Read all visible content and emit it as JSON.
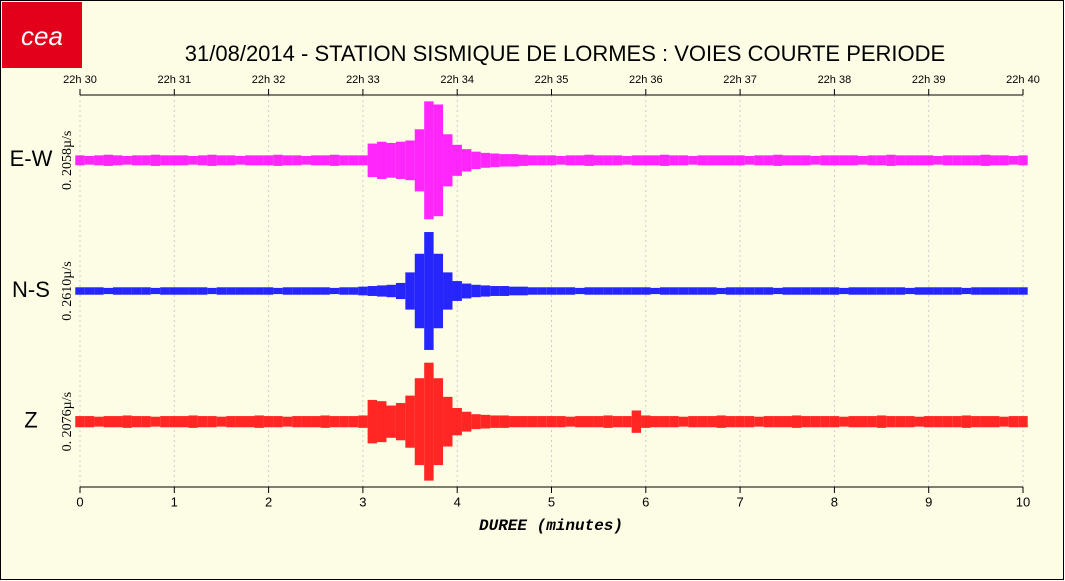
{
  "chart_data": {
    "type": "seismogram",
    "logo": "cea",
    "title": "31/08/2014  -  STATION SISMIQUE DE LORMES : VOIES COURTE PERIODE",
    "xlabel": "DUREE (minutes)",
    "xlim": [
      0,
      10
    ],
    "xticks": [
      0,
      1,
      2,
      3,
      4,
      5,
      6,
      7,
      8,
      9,
      10
    ],
    "top_xticks": [
      {
        "value": 0,
        "label": "22h 30"
      },
      {
        "value": 1,
        "label": "22h 31"
      },
      {
        "value": 2,
        "label": "22h 32"
      },
      {
        "value": 3,
        "label": "22h 33"
      },
      {
        "value": 4,
        "label": "22h 34"
      },
      {
        "value": 5,
        "label": "22h 35"
      },
      {
        "value": 6,
        "label": "22h 36"
      },
      {
        "value": 7,
        "label": "22h 37"
      },
      {
        "value": 8,
        "label": "22h 38"
      },
      {
        "value": 9,
        "label": "22h 39"
      },
      {
        "value": 10,
        "label": "22h 40"
      }
    ],
    "ylim": [
      -1,
      1
    ],
    "grid": true,
    "x": [
      0,
      0.1,
      0.2,
      0.3,
      0.4,
      0.5,
      0.6,
      0.7,
      0.8,
      0.9,
      1,
      1.1,
      1.2,
      1.3,
      1.4,
      1.5,
      1.6,
      1.7,
      1.8,
      1.9,
      2,
      2.1,
      2.2,
      2.3,
      2.4,
      2.5,
      2.6,
      2.7,
      2.8,
      2.9,
      3,
      3.1,
      3.2,
      3.3,
      3.4,
      3.5,
      3.6,
      3.7,
      3.8,
      3.9,
      4,
      4.1,
      4.2,
      4.3,
      4.4,
      4.5,
      4.6,
      4.7,
      4.8,
      4.9,
      5,
      5.1,
      5.2,
      5.3,
      5.4,
      5.5,
      5.6,
      5.7,
      5.8,
      5.9,
      6,
      6.1,
      6.2,
      6.3,
      6.4,
      6.5,
      6.6,
      6.7,
      6.8,
      6.9,
      7,
      7.1,
      7.2,
      7.3,
      7.4,
      7.5,
      7.6,
      7.7,
      7.8,
      7.9,
      8,
      8.1,
      8.2,
      8.3,
      8.4,
      8.5,
      8.6,
      8.7,
      8.8,
      8.9,
      9,
      9.1,
      9.2,
      9.3,
      9.4,
      9.5,
      9.6,
      9.7,
      9.8,
      9.9,
      10
    ],
    "series": [
      {
        "name": "E-W",
        "color": "#ff00ff",
        "scale_label": "0. 2058µ/s",
        "values": [
          0.08,
          0.07,
          0.08,
          0.09,
          0.08,
          0.07,
          0.08,
          0.08,
          0.09,
          0.08,
          0.08,
          0.08,
          0.07,
          0.08,
          0.09,
          0.08,
          0.08,
          0.07,
          0.08,
          0.08,
          0.08,
          0.09,
          0.08,
          0.08,
          0.07,
          0.08,
          0.08,
          0.09,
          0.08,
          0.08,
          0.08,
          0.27,
          0.3,
          0.28,
          0.3,
          0.32,
          0.5,
          0.95,
          0.9,
          0.42,
          0.25,
          0.18,
          0.14,
          0.12,
          0.11,
          0.1,
          0.1,
          0.09,
          0.08,
          0.08,
          0.08,
          0.07,
          0.08,
          0.08,
          0.09,
          0.08,
          0.08,
          0.08,
          0.07,
          0.08,
          0.08,
          0.08,
          0.09,
          0.08,
          0.08,
          0.07,
          0.08,
          0.08,
          0.08,
          0.08,
          0.08,
          0.07,
          0.08,
          0.08,
          0.09,
          0.08,
          0.08,
          0.08,
          0.07,
          0.08,
          0.08,
          0.08,
          0.08,
          0.07,
          0.08,
          0.08,
          0.09,
          0.08,
          0.08,
          0.08,
          0.08,
          0.07,
          0.08,
          0.08,
          0.08,
          0.08,
          0.09,
          0.08,
          0.08,
          0.07,
          0.08
        ]
      },
      {
        "name": "N-S",
        "color": "#0000ff",
        "scale_label": "0. 2610µ/s",
        "values": [
          0.06,
          0.06,
          0.06,
          0.05,
          0.06,
          0.06,
          0.06,
          0.06,
          0.05,
          0.06,
          0.06,
          0.06,
          0.06,
          0.06,
          0.05,
          0.06,
          0.06,
          0.06,
          0.06,
          0.06,
          0.06,
          0.05,
          0.06,
          0.06,
          0.06,
          0.06,
          0.06,
          0.05,
          0.06,
          0.06,
          0.07,
          0.08,
          0.09,
          0.1,
          0.13,
          0.3,
          0.6,
          0.95,
          0.6,
          0.3,
          0.16,
          0.12,
          0.1,
          0.09,
          0.08,
          0.08,
          0.07,
          0.07,
          0.06,
          0.06,
          0.06,
          0.06,
          0.06,
          0.05,
          0.06,
          0.06,
          0.06,
          0.06,
          0.06,
          0.06,
          0.06,
          0.05,
          0.06,
          0.06,
          0.06,
          0.06,
          0.06,
          0.06,
          0.05,
          0.06,
          0.06,
          0.06,
          0.06,
          0.06,
          0.05,
          0.06,
          0.06,
          0.06,
          0.06,
          0.06,
          0.06,
          0.05,
          0.06,
          0.06,
          0.06,
          0.06,
          0.06,
          0.06,
          0.05,
          0.06,
          0.06,
          0.06,
          0.06,
          0.06,
          0.05,
          0.06,
          0.06,
          0.06,
          0.06,
          0.06,
          0.06
        ]
      },
      {
        "name": "Z",
        "color": "#ff0000",
        "scale_label": "0. 2076µ/s",
        "values": [
          0.09,
          0.09,
          0.08,
          0.09,
          0.09,
          0.1,
          0.09,
          0.09,
          0.08,
          0.09,
          0.09,
          0.09,
          0.1,
          0.09,
          0.09,
          0.08,
          0.09,
          0.09,
          0.09,
          0.1,
          0.09,
          0.09,
          0.08,
          0.09,
          0.09,
          0.09,
          0.1,
          0.09,
          0.09,
          0.09,
          0.1,
          0.35,
          0.33,
          0.26,
          0.3,
          0.42,
          0.7,
          0.95,
          0.7,
          0.4,
          0.22,
          0.16,
          0.12,
          0.11,
          0.1,
          0.1,
          0.09,
          0.09,
          0.09,
          0.09,
          0.09,
          0.09,
          0.08,
          0.09,
          0.09,
          0.09,
          0.1,
          0.09,
          0.09,
          0.18,
          0.1,
          0.09,
          0.09,
          0.09,
          0.08,
          0.09,
          0.09,
          0.09,
          0.1,
          0.09,
          0.09,
          0.09,
          0.08,
          0.09,
          0.09,
          0.09,
          0.1,
          0.09,
          0.09,
          0.09,
          0.09,
          0.08,
          0.09,
          0.09,
          0.09,
          0.1,
          0.09,
          0.09,
          0.09,
          0.08,
          0.09,
          0.09,
          0.09,
          0.09,
          0.1,
          0.09,
          0.09,
          0.09,
          0.08,
          0.09,
          0.09
        ]
      }
    ]
  }
}
